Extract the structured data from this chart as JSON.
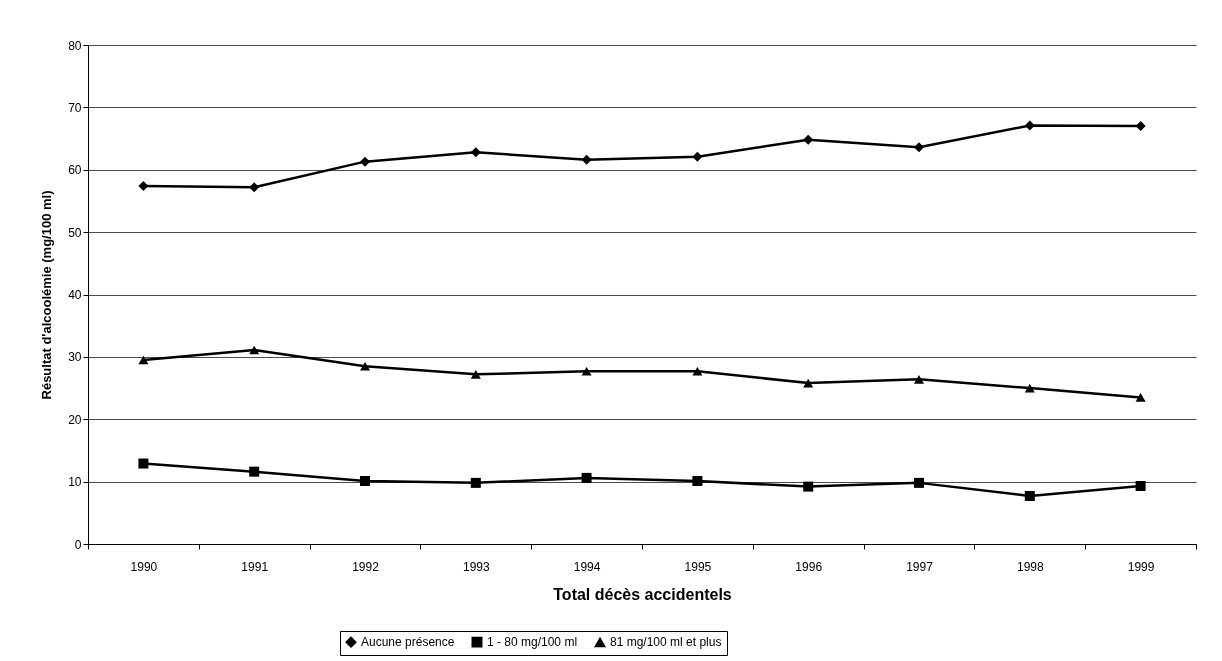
{
  "chart_data": {
    "type": "line",
    "xlabel": "Total décès accidentels",
    "ylabel": "Résultat d'alcoolémie (mg/100 ml)",
    "categories": [
      "1990",
      "1991",
      "1992",
      "1993",
      "1994",
      "1995",
      "1996",
      "1997",
      "1998",
      "1999"
    ],
    "series": [
      {
        "name": "Aucune présence",
        "color": "#000000",
        "marker": "diamond",
        "values": [
          57.4,
          57.2,
          61.3,
          62.8,
          61.6,
          62.1,
          64.8,
          63.6,
          67.1,
          67.0
        ]
      },
      {
        "name": "1 - 80 mg/100 ml",
        "color": "#000000",
        "marker": "square",
        "values": [
          12.9,
          11.6,
          10.1,
          9.8,
          10.6,
          10.1,
          9.2,
          9.8,
          7.7,
          9.3
        ]
      },
      {
        "name": "81 mg/100 ml et plus",
        "color": "#000000",
        "marker": "triangle",
        "values": [
          29.5,
          31.1,
          28.5,
          27.2,
          27.7,
          27.7,
          25.8,
          26.4,
          25.0,
          23.5
        ]
      }
    ],
    "ylim": [
      0,
      80
    ],
    "yticks": [
      0,
      10,
      20,
      30,
      40,
      50,
      60,
      70,
      80
    ],
    "grid": "y",
    "legend": "bottom",
    "line_style": "solid"
  }
}
